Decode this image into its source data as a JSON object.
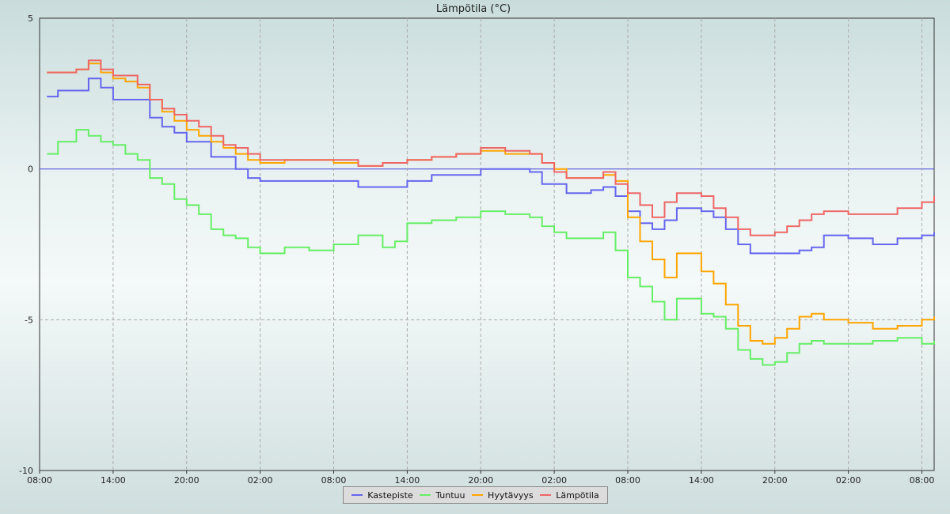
{
  "chart_data": {
    "type": "line",
    "title": "Lämpötila (°C)",
    "ylim": [
      -10,
      5
    ],
    "yticks": [
      5,
      0,
      -5,
      -10
    ],
    "x_tick_labels": [
      "08:00",
      "14:00",
      "20:00",
      "02:00",
      "08:00",
      "14:00",
      "20:00",
      "02:00",
      "08:00",
      "14:00",
      "20:00",
      "02:00",
      "08:00"
    ],
    "x_range_hours": [
      0,
      73
    ],
    "grid": true,
    "legend_placement": "bottom-center",
    "series": [
      {
        "name": "Kastepiste",
        "color": "#6666ee",
        "points": [
          [
            0.6,
            2.4
          ],
          [
            1.5,
            2.6
          ],
          [
            3,
            2.6
          ],
          [
            4,
            3.0
          ],
          [
            5,
            2.7
          ],
          [
            6,
            2.3
          ],
          [
            8,
            2.3
          ],
          [
            9,
            1.7
          ],
          [
            10,
            1.4
          ],
          [
            11,
            1.2
          ],
          [
            12,
            0.9
          ],
          [
            14,
            0.4
          ],
          [
            16,
            0.0
          ],
          [
            17,
            -0.3
          ],
          [
            18,
            -0.4
          ],
          [
            20,
            -0.4
          ],
          [
            24,
            -0.4
          ],
          [
            26,
            -0.6
          ],
          [
            28,
            -0.6
          ],
          [
            30,
            -0.4
          ],
          [
            32,
            -0.2
          ],
          [
            34,
            -0.2
          ],
          [
            36,
            0.0
          ],
          [
            38,
            0.0
          ],
          [
            40,
            -0.1
          ],
          [
            41,
            -0.5
          ],
          [
            43,
            -0.8
          ],
          [
            44,
            -0.8
          ],
          [
            45,
            -0.7
          ],
          [
            46,
            -0.6
          ],
          [
            47,
            -0.9
          ],
          [
            48,
            -1.4
          ],
          [
            49,
            -1.8
          ],
          [
            50,
            -2.0
          ],
          [
            51,
            -1.7
          ],
          [
            52,
            -1.3
          ],
          [
            54,
            -1.4
          ],
          [
            55,
            -1.6
          ],
          [
            56,
            -2.0
          ],
          [
            57,
            -2.5
          ],
          [
            58,
            -2.8
          ],
          [
            60,
            -2.8
          ],
          [
            62,
            -2.7
          ],
          [
            63,
            -2.6
          ],
          [
            64,
            -2.2
          ],
          [
            66,
            -2.3
          ],
          [
            68,
            -2.5
          ],
          [
            69,
            -2.5
          ],
          [
            70,
            -2.3
          ],
          [
            72,
            -2.2
          ],
          [
            73,
            -2.1
          ]
        ]
      },
      {
        "name": "Tuntuu",
        "color": "#66ee66",
        "points": [
          [
            0.6,
            0.5
          ],
          [
            1.5,
            0.9
          ],
          [
            3,
            1.3
          ],
          [
            4,
            1.1
          ],
          [
            5,
            0.9
          ],
          [
            6,
            0.8
          ],
          [
            7,
            0.5
          ],
          [
            8,
            0.3
          ],
          [
            9,
            -0.3
          ],
          [
            10,
            -0.5
          ],
          [
            11,
            -1.0
          ],
          [
            12,
            -1.2
          ],
          [
            13,
            -1.5
          ],
          [
            14,
            -2.0
          ],
          [
            15,
            -2.2
          ],
          [
            16,
            -2.3
          ],
          [
            17,
            -2.6
          ],
          [
            18,
            -2.8
          ],
          [
            19,
            -2.8
          ],
          [
            20,
            -2.6
          ],
          [
            22,
            -2.7
          ],
          [
            24,
            -2.5
          ],
          [
            26,
            -2.2
          ],
          [
            28,
            -2.6
          ],
          [
            29,
            -2.4
          ],
          [
            30,
            -1.8
          ],
          [
            32,
            -1.7
          ],
          [
            34,
            -1.6
          ],
          [
            36,
            -1.4
          ],
          [
            38,
            -1.5
          ],
          [
            40,
            -1.6
          ],
          [
            41,
            -1.9
          ],
          [
            42,
            -2.1
          ],
          [
            43,
            -2.3
          ],
          [
            44,
            -2.3
          ],
          [
            46,
            -2.1
          ],
          [
            47,
            -2.7
          ],
          [
            48,
            -3.6
          ],
          [
            49,
            -3.9
          ],
          [
            50,
            -4.4
          ],
          [
            51,
            -5.0
          ],
          [
            52,
            -4.3
          ],
          [
            54,
            -4.8
          ],
          [
            55,
            -4.9
          ],
          [
            56,
            -5.3
          ],
          [
            57,
            -6.0
          ],
          [
            58,
            -6.3
          ],
          [
            59,
            -6.5
          ],
          [
            60,
            -6.4
          ],
          [
            61,
            -6.1
          ],
          [
            62,
            -5.8
          ],
          [
            63,
            -5.7
          ],
          [
            64,
            -5.8
          ],
          [
            66,
            -5.8
          ],
          [
            68,
            -5.7
          ],
          [
            70,
            -5.6
          ],
          [
            72,
            -5.8
          ],
          [
            73,
            -5.7
          ]
        ]
      },
      {
        "name": "Hyytävyys",
        "color": "#ffa500",
        "points": [
          [
            0.6,
            3.2
          ],
          [
            1.5,
            3.2
          ],
          [
            3,
            3.3
          ],
          [
            4,
            3.5
          ],
          [
            5,
            3.2
          ],
          [
            6,
            3.0
          ],
          [
            7,
            2.9
          ],
          [
            8,
            2.7
          ],
          [
            9,
            2.3
          ],
          [
            10,
            1.9
          ],
          [
            11,
            1.6
          ],
          [
            12,
            1.3
          ],
          [
            13,
            1.1
          ],
          [
            14,
            0.9
          ],
          [
            15,
            0.7
          ],
          [
            16,
            0.5
          ],
          [
            17,
            0.3
          ],
          [
            18,
            0.2
          ],
          [
            20,
            0.3
          ],
          [
            22,
            0.3
          ],
          [
            24,
            0.2
          ],
          [
            26,
            0.1
          ],
          [
            28,
            0.2
          ],
          [
            30,
            0.3
          ],
          [
            32,
            0.4
          ],
          [
            34,
            0.5
          ],
          [
            36,
            0.6
          ],
          [
            38,
            0.5
          ],
          [
            40,
            0.5
          ],
          [
            41,
            0.2
          ],
          [
            42,
            0.0
          ],
          [
            43,
            -0.3
          ],
          [
            44,
            -0.3
          ],
          [
            46,
            -0.2
          ],
          [
            47,
            -0.4
          ],
          [
            48,
            -1.6
          ],
          [
            49,
            -2.4
          ],
          [
            50,
            -3.0
          ],
          [
            51,
            -3.6
          ],
          [
            52,
            -2.8
          ],
          [
            54,
            -3.4
          ],
          [
            55,
            -3.8
          ],
          [
            56,
            -4.5
          ],
          [
            57,
            -5.2
          ],
          [
            58,
            -5.7
          ],
          [
            59,
            -5.8
          ],
          [
            60,
            -5.6
          ],
          [
            61,
            -5.3
          ],
          [
            62,
            -4.9
          ],
          [
            63,
            -4.8
          ],
          [
            64,
            -5.0
          ],
          [
            66,
            -5.1
          ],
          [
            68,
            -5.3
          ],
          [
            70,
            -5.2
          ],
          [
            72,
            -5.0
          ],
          [
            73,
            -4.9
          ]
        ]
      },
      {
        "name": "Lämpötila",
        "color": "#ee6666",
        "points": [
          [
            0.6,
            3.2
          ],
          [
            1.5,
            3.2
          ],
          [
            3,
            3.3
          ],
          [
            4,
            3.6
          ],
          [
            5,
            3.3
          ],
          [
            6,
            3.1
          ],
          [
            7,
            3.1
          ],
          [
            8,
            2.8
          ],
          [
            9,
            2.3
          ],
          [
            10,
            2.0
          ],
          [
            11,
            1.8
          ],
          [
            12,
            1.6
          ],
          [
            13,
            1.4
          ],
          [
            14,
            1.1
          ],
          [
            15,
            0.8
          ],
          [
            16,
            0.7
          ],
          [
            17,
            0.5
          ],
          [
            18,
            0.3
          ],
          [
            20,
            0.3
          ],
          [
            22,
            0.3
          ],
          [
            24,
            0.3
          ],
          [
            26,
            0.1
          ],
          [
            28,
            0.2
          ],
          [
            30,
            0.3
          ],
          [
            32,
            0.4
          ],
          [
            34,
            0.5
          ],
          [
            36,
            0.7
          ],
          [
            38,
            0.6
          ],
          [
            40,
            0.5
          ],
          [
            41,
            0.2
          ],
          [
            42,
            -0.1
          ],
          [
            43,
            -0.3
          ],
          [
            44,
            -0.3
          ],
          [
            46,
            -0.1
          ],
          [
            47,
            -0.5
          ],
          [
            48,
            -0.8
          ],
          [
            49,
            -1.2
          ],
          [
            50,
            -1.6
          ],
          [
            51,
            -1.1
          ],
          [
            52,
            -0.8
          ],
          [
            54,
            -0.9
          ],
          [
            55,
            -1.3
          ],
          [
            56,
            -1.6
          ],
          [
            57,
            -2.0
          ],
          [
            58,
            -2.2
          ],
          [
            59,
            -2.2
          ],
          [
            60,
            -2.1
          ],
          [
            61,
            -1.9
          ],
          [
            62,
            -1.7
          ],
          [
            63,
            -1.5
          ],
          [
            64,
            -1.4
          ],
          [
            66,
            -1.5
          ],
          [
            68,
            -1.5
          ],
          [
            70,
            -1.3
          ],
          [
            72,
            -1.1
          ],
          [
            73,
            -0.9
          ]
        ]
      }
    ]
  }
}
